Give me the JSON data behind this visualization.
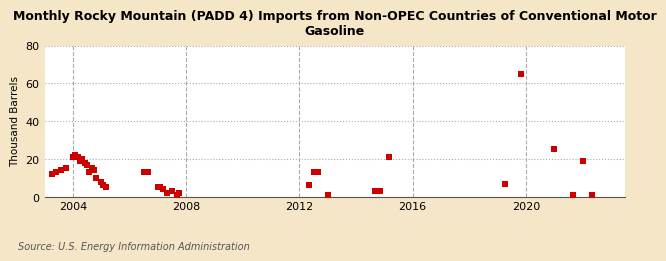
{
  "title": "Monthly Rocky Mountain (PADD 4) Imports from Non-OPEC Countries of Conventional Motor\nGasoline",
  "ylabel": "Thousand Barrels",
  "source": "Source: U.S. Energy Information Administration",
  "background_color": "#f5e6c8",
  "plot_bg_color": "#ffffff",
  "point_color": "#cc0000",
  "marker": "s",
  "marker_size": 16,
  "ylim": [
    0,
    80
  ],
  "yticks": [
    0,
    20,
    40,
    60,
    80
  ],
  "xlim": [
    2003.0,
    2023.5
  ],
  "xticks": [
    2004,
    2008,
    2012,
    2016,
    2020
  ],
  "data_points": [
    [
      2003.25,
      12
    ],
    [
      2003.42,
      13
    ],
    [
      2003.58,
      14
    ],
    [
      2003.75,
      15
    ],
    [
      2004.0,
      21
    ],
    [
      2004.08,
      22
    ],
    [
      2004.17,
      21
    ],
    [
      2004.25,
      19
    ],
    [
      2004.33,
      20
    ],
    [
      2004.42,
      18
    ],
    [
      2004.5,
      17
    ],
    [
      2004.58,
      13
    ],
    [
      2004.67,
      15
    ],
    [
      2004.75,
      14
    ],
    [
      2004.83,
      10
    ],
    [
      2005.0,
      8
    ],
    [
      2005.08,
      6
    ],
    [
      2005.17,
      5
    ],
    [
      2006.5,
      13
    ],
    [
      2006.67,
      13
    ],
    [
      2007.0,
      5
    ],
    [
      2007.08,
      5
    ],
    [
      2007.17,
      4
    ],
    [
      2007.33,
      2
    ],
    [
      2007.5,
      3
    ],
    [
      2007.67,
      1
    ],
    [
      2007.75,
      2
    ],
    [
      2012.33,
      6
    ],
    [
      2012.5,
      13
    ],
    [
      2012.67,
      13
    ],
    [
      2013.0,
      1
    ],
    [
      2014.67,
      3
    ],
    [
      2014.83,
      3
    ],
    [
      2015.17,
      21
    ],
    [
      2019.25,
      7
    ],
    [
      2019.83,
      65
    ],
    [
      2021.0,
      25
    ],
    [
      2021.67,
      1
    ],
    [
      2022.0,
      19
    ],
    [
      2022.33,
      1
    ]
  ]
}
